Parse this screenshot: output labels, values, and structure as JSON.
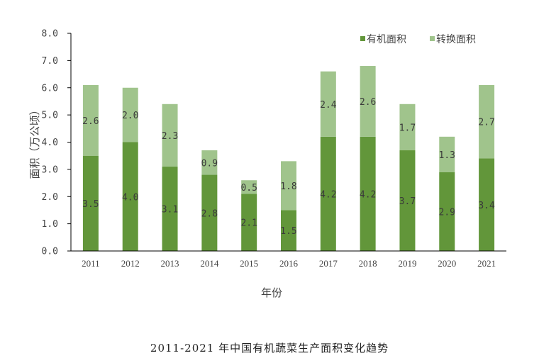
{
  "chart_data": {
    "type": "bar",
    "stacked": true,
    "title": "2011-2021 年中国有机蔬菜生产面积变化趋势",
    "xlabel": "年份",
    "ylabel": "面积（万公顷）",
    "ylim": [
      0,
      8
    ],
    "yticks": [
      "0.0",
      "1.0",
      "2.0",
      "3.0",
      "4.0",
      "5.0",
      "6.0",
      "7.0",
      "8.0"
    ],
    "grid": false,
    "legend_position": "top-right",
    "categories": [
      "2011",
      "2012",
      "2013",
      "2014",
      "2015",
      "2016",
      "2017",
      "2018",
      "2019",
      "2020",
      "2021"
    ],
    "series": [
      {
        "name": "有机面积",
        "color": "#62963a",
        "values": [
          3.5,
          4.0,
          3.1,
          2.8,
          2.1,
          1.5,
          4.2,
          4.2,
          3.7,
          2.9,
          3.4
        ]
      },
      {
        "name": "转换面积",
        "color": "#a0c48c",
        "values": [
          2.6,
          2.0,
          2.3,
          0.9,
          0.5,
          1.8,
          2.4,
          2.6,
          1.7,
          1.3,
          2.7
        ]
      }
    ]
  }
}
